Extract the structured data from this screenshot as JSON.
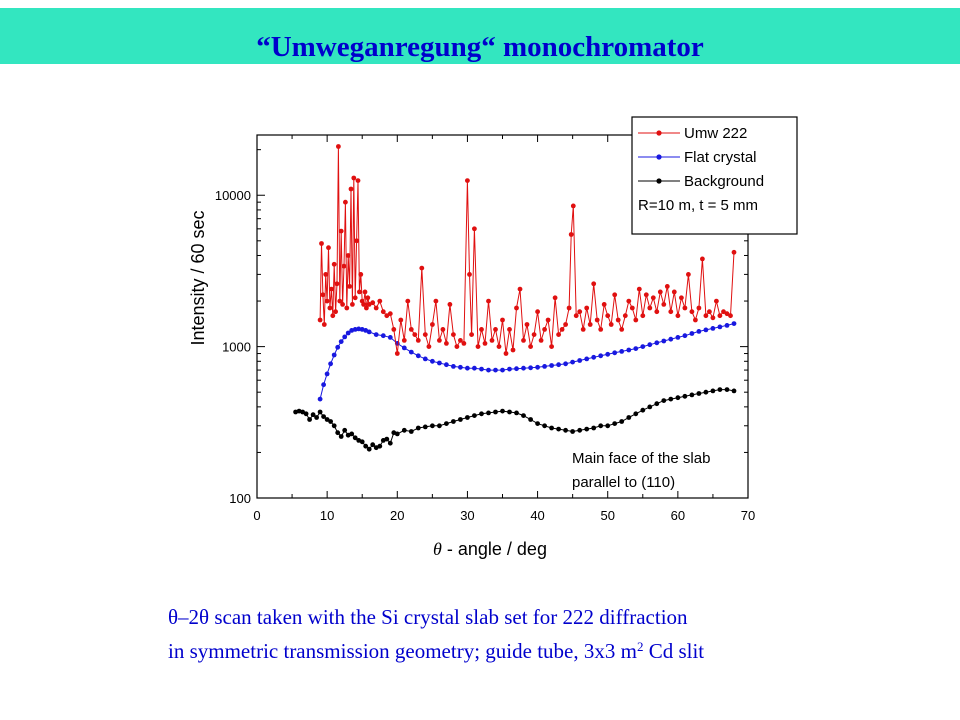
{
  "header": {
    "title": "“Umweganregung“ monochromator",
    "band_color": "#33e6c0"
  },
  "caption": {
    "line1": "θ–2θ scan taken with the Si crystal slab set for 222 diffraction",
    "line2_pre": "in symmetric transmission geometry; guide tube, 3x3 m",
    "line2_sup": "2",
    "line2_post": " Cd slit",
    "color": "#0000cc"
  },
  "chart_data": {
    "type": "scatter",
    "title": "",
    "xlabel_symbol": "θ",
    "xlabel": " - angle / deg",
    "ylabel": "Intensity / 60 sec",
    "xlim": [
      0,
      70
    ],
    "ylim": [
      100,
      25000
    ],
    "yscale": "log",
    "grid": false,
    "legend_position": "top-right",
    "x_ticks": [
      "0",
      "10",
      "20",
      "30",
      "40",
      "50",
      "60",
      "70"
    ],
    "y_ticks": [
      "100",
      "1000",
      "10000"
    ],
    "legend_note": "R=10 m, t = 5 mm",
    "annotation_lines": [
      "Main face of the slab",
      "parallel to (110)"
    ],
    "series": [
      {
        "name": "Umw 222",
        "color": "#e01010",
        "x": [
          9.0,
          9.2,
          9.4,
          9.6,
          9.8,
          10.0,
          10.2,
          10.4,
          10.6,
          10.8,
          11.0,
          11.2,
          11.4,
          11.6,
          11.8,
          12.0,
          12.2,
          12.4,
          12.6,
          12.8,
          13.0,
          13.2,
          13.4,
          13.6,
          13.8,
          14.0,
          14.2,
          14.4,
          14.6,
          14.8,
          15.0,
          15.2,
          15.4,
          15.6,
          15.8,
          16.0,
          16.5,
          17.0,
          17.5,
          18.0,
          18.5,
          19.0,
          19.5,
          20.0,
          20.5,
          21.0,
          21.5,
          22.0,
          22.5,
          23.0,
          23.5,
          24.0,
          24.5,
          25.0,
          25.5,
          26.0,
          26.5,
          27.0,
          27.5,
          28.0,
          28.5,
          29.0,
          29.5,
          30.0,
          30.3,
          30.6,
          31.0,
          31.5,
          32.0,
          32.5,
          33.0,
          33.5,
          34.0,
          34.5,
          35.0,
          35.5,
          36.0,
          36.5,
          37.0,
          37.5,
          38.0,
          38.5,
          39.0,
          39.5,
          40.0,
          40.5,
          41.0,
          41.5,
          42.0,
          42.5,
          43.0,
          43.5,
          44.0,
          44.5,
          44.8,
          45.1,
          45.5,
          46.0,
          46.5,
          47.0,
          47.5,
          48.0,
          48.5,
          49.0,
          49.5,
          50.0,
          50.5,
          51.0,
          51.5,
          52.0,
          52.5,
          53.0,
          53.5,
          54.0,
          54.5,
          55.0,
          55.5,
          56.0,
          56.5,
          57.0,
          57.5,
          58.0,
          58.5,
          59.0,
          59.5,
          60.0,
          60.5,
          61.0,
          61.5,
          62.0,
          62.5,
          63.0,
          63.5,
          64.0,
          64.5,
          65.0,
          65.5,
          66.0,
          66.5,
          67.0,
          67.5,
          68.0
        ],
        "y": [
          1500,
          4800,
          2200,
          1400,
          3000,
          2000,
          4500,
          1800,
          2400,
          1600,
          3500,
          1700,
          2600,
          21000,
          2000,
          5800,
          1900,
          3400,
          9000,
          1800,
          4000,
          2500,
          11000,
          1900,
          13000,
          2100,
          5000,
          12500,
          2300,
          3000,
          2000,
          1900,
          2300,
          1800,
          2100,
          1900,
          1950,
          1800,
          2000,
          1700,
          1600,
          1650,
          1300,
          900,
          1500,
          1100,
          2000,
          1300,
          1200,
          1100,
          3300,
          1200,
          1000,
          1400,
          2000,
          1100,
          1300,
          1050,
          1900,
          1200,
          1000,
          1100,
          1050,
          12500,
          3000,
          1200,
          6000,
          1000,
          1300,
          1050,
          2000,
          1100,
          1300,
          1000,
          1500,
          900,
          1300,
          950,
          1800,
          2400,
          1100,
          1400,
          1000,
          1200,
          1700,
          1100,
          1300,
          1500,
          1000,
          2100,
          1200,
          1300,
          1400,
          1800,
          5500,
          8500,
          1600,
          1700,
          1300,
          1800,
          1400,
          2600,
          1500,
          1300,
          1900,
          1600,
          1400,
          2200,
          1500,
          1300,
          1600,
          2000,
          1800,
          1500,
          2400,
          1600,
          2200,
          1800,
          2100,
          1700,
          2300,
          1900,
          2500,
          1700,
          2300,
          1600,
          2100,
          1800,
          3000,
          1700,
          1500,
          1800,
          3800,
          1600,
          1700,
          1550,
          2000,
          1600,
          1700,
          1650,
          1600,
          4200
        ]
      },
      {
        "name": "Flat crystal",
        "color": "#1818e0",
        "x": [
          9.0,
          9.5,
          10.0,
          10.5,
          11.0,
          11.5,
          12.0,
          12.5,
          13.0,
          13.5,
          14.0,
          14.5,
          15.0,
          15.5,
          16.0,
          17.0,
          18.0,
          19.0,
          20.0,
          21.0,
          22.0,
          23.0,
          24.0,
          25.0,
          26.0,
          27.0,
          28.0,
          29.0,
          30.0,
          31.0,
          32.0,
          33.0,
          34.0,
          35.0,
          36.0,
          37.0,
          38.0,
          39.0,
          40.0,
          41.0,
          42.0,
          43.0,
          44.0,
          45.0,
          46.0,
          47.0,
          48.0,
          49.0,
          50.0,
          51.0,
          52.0,
          53.0,
          54.0,
          55.0,
          56.0,
          57.0,
          58.0,
          59.0,
          60.0,
          61.0,
          62.0,
          63.0,
          64.0,
          65.0,
          66.0,
          67.0,
          68.0
        ],
        "y": [
          450,
          560,
          660,
          770,
          880,
          990,
          1080,
          1160,
          1230,
          1280,
          1300,
          1310,
          1300,
          1280,
          1250,
          1200,
          1180,
          1150,
          1050,
          980,
          920,
          870,
          830,
          800,
          780,
          760,
          740,
          730,
          720,
          720,
          710,
          700,
          700,
          700,
          710,
          715,
          720,
          725,
          730,
          740,
          750,
          760,
          770,
          790,
          810,
          830,
          850,
          870,
          890,
          910,
          930,
          950,
          970,
          1000,
          1030,
          1060,
          1090,
          1120,
          1150,
          1180,
          1220,
          1260,
          1290,
          1320,
          1350,
          1380,
          1420
        ]
      },
      {
        "name": "Background",
        "color": "#000000",
        "x": [
          5.5,
          6.0,
          6.5,
          7.0,
          7.5,
          8.0,
          8.5,
          9.0,
          9.5,
          10.0,
          10.5,
          11.0,
          11.5,
          12.0,
          12.5,
          13.0,
          13.5,
          14.0,
          14.5,
          15.0,
          15.5,
          16.0,
          16.5,
          17.0,
          17.5,
          18.0,
          18.5,
          19.0,
          19.5,
          20.0,
          21.0,
          22.0,
          23.0,
          24.0,
          25.0,
          26.0,
          27.0,
          28.0,
          29.0,
          30.0,
          31.0,
          32.0,
          33.0,
          34.0,
          35.0,
          36.0,
          37.0,
          38.0,
          39.0,
          40.0,
          41.0,
          42.0,
          43.0,
          44.0,
          45.0,
          46.0,
          47.0,
          48.0,
          49.0,
          50.0,
          51.0,
          52.0,
          53.0,
          54.0,
          55.0,
          56.0,
          57.0,
          58.0,
          59.0,
          60.0,
          61.0,
          62.0,
          63.0,
          64.0,
          65.0,
          66.0,
          67.0,
          68.0
        ],
        "y": [
          370,
          375,
          370,
          360,
          330,
          355,
          340,
          370,
          345,
          330,
          320,
          300,
          270,
          255,
          280,
          260,
          265,
          250,
          240,
          235,
          220,
          210,
          225,
          215,
          220,
          240,
          245,
          230,
          270,
          265,
          280,
          275,
          290,
          295,
          300,
          300,
          310,
          320,
          330,
          340,
          350,
          360,
          365,
          370,
          375,
          370,
          365,
          350,
          330,
          310,
          300,
          290,
          285,
          280,
          275,
          280,
          285,
          290,
          300,
          300,
          310,
          320,
          340,
          360,
          380,
          400,
          420,
          440,
          450,
          460,
          470,
          480,
          490,
          500,
          510,
          520,
          520,
          510
        ]
      }
    ]
  }
}
